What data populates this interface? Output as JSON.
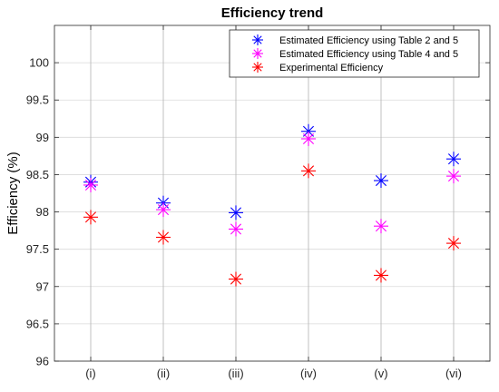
{
  "chart_data": {
    "type": "scatter",
    "title": "Efficiency trend",
    "xlabel": "",
    "ylabel": "Efficiency (%)",
    "categories": [
      "(i)",
      "(ii)",
      "(iii)",
      "(iv)",
      "(v)",
      "(vi)"
    ],
    "ylim": [
      96,
      100.5
    ],
    "yticks": [
      96,
      96.5,
      97,
      97.5,
      98,
      98.5,
      99,
      99.5,
      100
    ],
    "ytick_labels": [
      "96",
      "96.5",
      "97",
      "97.5",
      "98",
      "98.5",
      "99",
      "99.5",
      "100"
    ],
    "grid": true,
    "legend_position": "top-right",
    "marker": "asterisk",
    "series": [
      {
        "name": "Estimated Efficiency using Table 2 and 5",
        "color": "#0000ff",
        "values": [
          98.4,
          98.12,
          97.99,
          99.08,
          98.42,
          98.71
        ]
      },
      {
        "name": "Estimated Efficiency using Table 4 and 5",
        "color": "#ff00ff",
        "values": [
          98.36,
          98.03,
          97.77,
          98.98,
          97.81,
          98.48
        ]
      },
      {
        "name": "Experimental Efficiency",
        "color": "#ff0000",
        "values": [
          97.93,
          97.66,
          97.1,
          98.55,
          97.15,
          97.58
        ]
      }
    ]
  }
}
